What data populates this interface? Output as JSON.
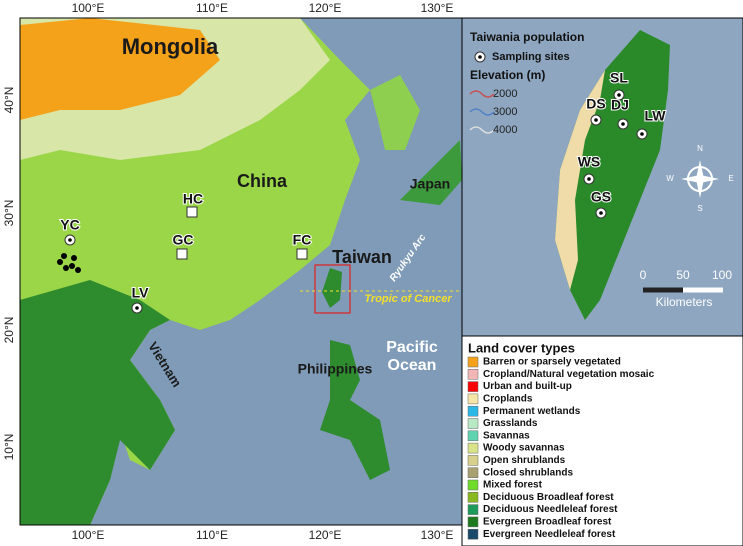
{
  "map": {
    "longitude_labels": [
      "100°E",
      "110°E",
      "120°E",
      "130°E"
    ],
    "latitude_labels": [
      "40°N",
      "30°N",
      "20°N",
      "10°N"
    ],
    "place_labels": [
      "Mongolia",
      "China",
      "Japan",
      "Taiwan",
      "Pacific",
      "Ocean",
      "Philippines",
      "Vietnam"
    ],
    "annotations": [
      "Ryukyu Arc",
      "Tropic of Cancer"
    ],
    "sites": [
      "YC",
      "HC",
      "GC",
      "FC",
      "LV"
    ]
  },
  "inset": {
    "title": "Taiwania population",
    "sampling_label": "Sampling sites",
    "elevation_title": "Elevation (m)",
    "elevation_levels": [
      2000,
      3000,
      4000
    ],
    "sites": [
      "SL",
      "DS",
      "DJ",
      "LW",
      "WS",
      "GS"
    ],
    "compass": [
      "N",
      "E",
      "S",
      "W"
    ],
    "scale_labels": [
      0,
      50,
      100
    ],
    "scale_unit": "Kilometers"
  },
  "legend": {
    "title": "Land cover types",
    "items": [
      {
        "label": "Barren or sparsely vegetated",
        "color": "#f5a21b"
      },
      {
        "label": "Cropland/Natural vegetation mosaic",
        "color": "#f2b6b6"
      },
      {
        "label": "Urban and built-up",
        "color": "#ff0000"
      },
      {
        "label": "Croplands",
        "color": "#f5e6a8"
      },
      {
        "label": "Permanent wetlands",
        "color": "#2bb8e6"
      },
      {
        "label": "Grasslands",
        "color": "#b9e8c4"
      },
      {
        "label": "Savannas",
        "color": "#5fd3b0"
      },
      {
        "label": "Woody savannas",
        "color": "#d9e38a"
      },
      {
        "label": "Open shrublands",
        "color": "#d6d08c"
      },
      {
        "label": "Closed shrublands",
        "color": "#a8a070"
      },
      {
        "label": "Mixed forest",
        "color": "#6fdc2a"
      },
      {
        "label": "Deciduous Broadleaf forest",
        "color": "#8ab820"
      },
      {
        "label": "Deciduous Needleleaf forest",
        "color": "#1e9a5a"
      },
      {
        "label": "Evergreen Broadleaf forest",
        "color": "#1e7a1e"
      },
      {
        "label": "Evergreen Needleleaf forest",
        "color": "#1a4a6a"
      }
    ]
  }
}
